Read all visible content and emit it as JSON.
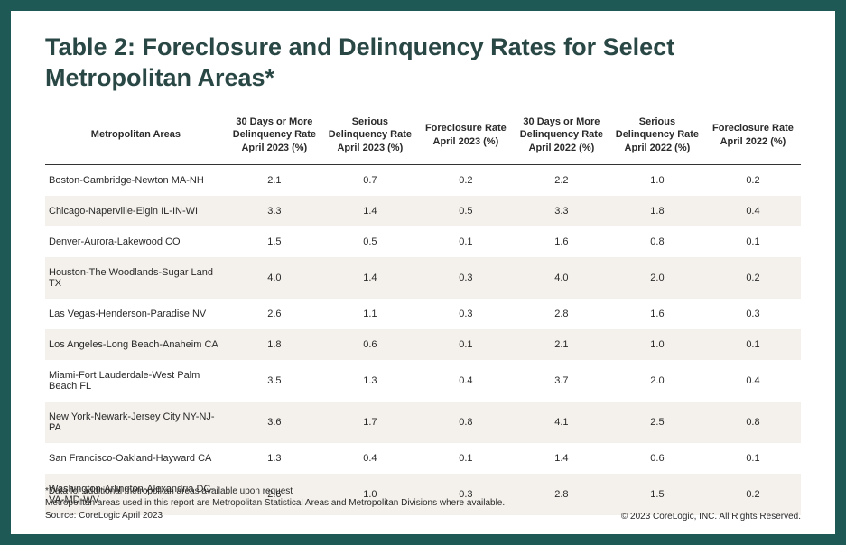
{
  "title": "Table 2: Foreclosure and Delinquency Rates for Select Metropolitan Areas*",
  "columns": [
    "Metropolitan Areas",
    "30 Days or More Delinquency Rate April 2023 (%)",
    "Serious Delinquency Rate April 2023 (%)",
    "Foreclosure Rate April 2023 (%)",
    "30 Days or More Delinquency Rate April 2022 (%)",
    "Serious Delinquency Rate April 2022 (%)",
    "Foreclosure Rate April 2022 (%)"
  ],
  "rows": [
    {
      "metro": "Boston-Cambridge-Newton MA-NH",
      "c1": "2.1",
      "c2": "0.7",
      "c3": "0.2",
      "c4": "2.2",
      "c5": "1.0",
      "c6": "0.2"
    },
    {
      "metro": "Chicago-Naperville-Elgin IL-IN-WI",
      "c1": "3.3",
      "c2": "1.4",
      "c3": "0.5",
      "c4": "3.3",
      "c5": "1.8",
      "c6": "0.4"
    },
    {
      "metro": "Denver-Aurora-Lakewood CO",
      "c1": "1.5",
      "c2": "0.5",
      "c3": "0.1",
      "c4": "1.6",
      "c5": "0.8",
      "c6": "0.1"
    },
    {
      "metro": "Houston-The Woodlands-Sugar Land TX",
      "c1": "4.0",
      "c2": "1.4",
      "c3": "0.3",
      "c4": "4.0",
      "c5": "2.0",
      "c6": "0.2"
    },
    {
      "metro": "Las Vegas-Henderson-Paradise NV",
      "c1": "2.6",
      "c2": "1.1",
      "c3": "0.3",
      "c4": "2.8",
      "c5": "1.6",
      "c6": "0.3"
    },
    {
      "metro": "Los Angeles-Long Beach-Anaheim CA",
      "c1": "1.8",
      "c2": "0.6",
      "c3": "0.1",
      "c4": "2.1",
      "c5": "1.0",
      "c6": "0.1"
    },
    {
      "metro": "Miami-Fort Lauderdale-West Palm Beach FL",
      "c1": "3.5",
      "c2": "1.3",
      "c3": "0.4",
      "c4": "3.7",
      "c5": "2.0",
      "c6": "0.4"
    },
    {
      "metro": "New York-Newark-Jersey City NY-NJ-PA",
      "c1": "3.6",
      "c2": "1.7",
      "c3": "0.8",
      "c4": "4.1",
      "c5": "2.5",
      "c6": "0.8"
    },
    {
      "metro": "San Francisco-Oakland-Hayward CA",
      "c1": "1.3",
      "c2": "0.4",
      "c3": "0.1",
      "c4": "1.4",
      "c5": "0.6",
      "c6": "0.1"
    },
    {
      "metro": "Washington-Arlington-Alexandria DC-VA-MD-WV",
      "c1": "2.6",
      "c2": "1.0",
      "c3": "0.3",
      "c4": "2.8",
      "c5": "1.5",
      "c6": "0.2"
    }
  ],
  "footnote": "*Data for additional metropolitan areas available upon request\nMetropolitan areas used in this report are Metropolitan Statistical Areas and Metropolitan Divisions where available.\nSource: CoreLogic April 2023",
  "copyright": "© 2023 CoreLogic, INC. All Rights Reserved.",
  "style": {
    "page_bg": "#ffffff",
    "frame_bg": "#1f5956",
    "title_color": "#294744",
    "title_fontsize": 27,
    "header_fontsize": 11,
    "cell_fontsize": 11,
    "footnote_fontsize": 10,
    "row_even_bg": "#f4f1ec",
    "row_odd_bg": "#ffffff",
    "header_border_color": "#333333",
    "text_color": "#2a2a2a",
    "col_widths_pct": [
      24,
      12.67,
      12.67,
      12.67,
      12.67,
      12.67,
      12.67
    ]
  }
}
